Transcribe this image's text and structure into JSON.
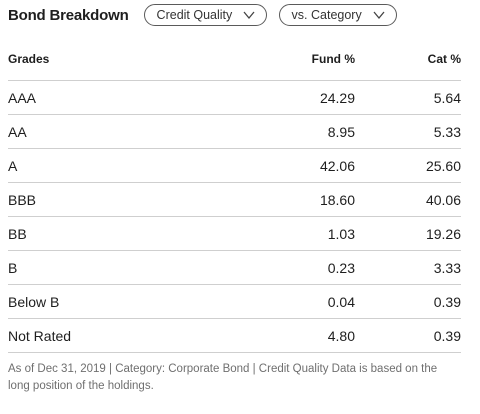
{
  "header": {
    "title": "Bond Breakdown",
    "credit_quality_label": "Credit Quality",
    "vs_category_label": "vs. Category"
  },
  "table": {
    "columns": [
      "Grades",
      "Fund  %",
      "Cat  %"
    ],
    "rows": [
      {
        "grade": "AAA",
        "fund": "24.29",
        "cat": "5.64"
      },
      {
        "grade": "AA",
        "fund": "8.95",
        "cat": "5.33"
      },
      {
        "grade": "A",
        "fund": "42.06",
        "cat": "25.60"
      },
      {
        "grade": "BBB",
        "fund": "18.60",
        "cat": "40.06"
      },
      {
        "grade": "BB",
        "fund": "1.03",
        "cat": "19.26"
      },
      {
        "grade": "B",
        "fund": "0.23",
        "cat": "3.33"
      },
      {
        "grade": "Below B",
        "fund": "0.04",
        "cat": "0.39"
      },
      {
        "grade": "Not Rated",
        "fund": "4.80",
        "cat": "0.39"
      }
    ]
  },
  "footnote": "As of Dec 31, 2019 | Category: Corporate Bond | Credit Quality Data is based on the long position of the holdings.",
  "icons": {
    "dropdown": "chevron-down-icon"
  },
  "colors": {
    "text": "#1e1e1e",
    "muted": "#6f6f6f",
    "divider": "#cfcfcf",
    "pill_border": "#5a5a5a"
  }
}
